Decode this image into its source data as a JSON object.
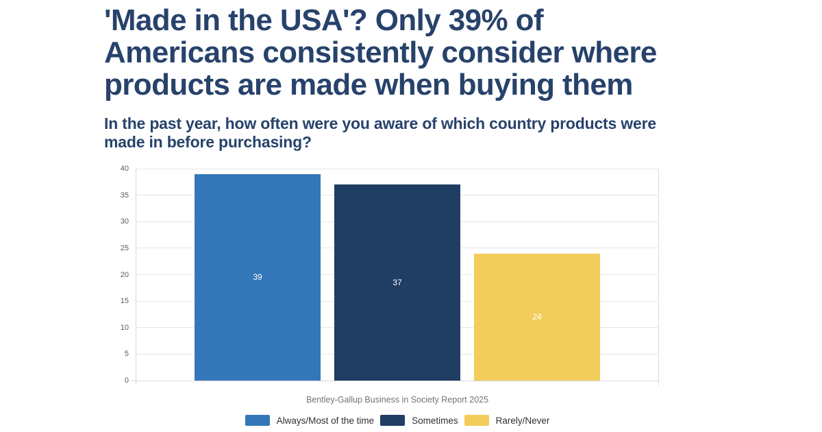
{
  "title_lines": [
    "'Made in the USA'? Only 39% of",
    "Americans consistently consider where",
    "products are made when buying them"
  ],
  "subtitle_lines": [
    "In the past year, how often were you aware of which country products were",
    "made in before purchasing?"
  ],
  "chart_data": {
    "type": "bar",
    "title": "'Made in the USA'? Only 39% of Americans consistently consider where products are made when buying them",
    "subtitle": "In the past year, how often were you aware of which country products were made in before purchasing?",
    "categories": [
      "Always/Most of the time",
      "Sometimes",
      "Rarely/Never"
    ],
    "values": [
      39,
      37,
      24
    ],
    "colors": [
      "#3377b8",
      "#203d63",
      "#f3cd5b"
    ],
    "value_label_color": "#ffffff",
    "xlabel": "",
    "ylabel": "",
    "ylim": [
      0,
      40
    ],
    "yticks": [
      0,
      5,
      10,
      15,
      20,
      25,
      30,
      35,
      40
    ],
    "grid": true,
    "legend_position": "bottom",
    "source": "Bentley-Gallup Business in Society Report 2025"
  },
  "legend": {
    "items": [
      {
        "label": "Always/Most of the time",
        "color": "#3377b8"
      },
      {
        "label": "Sometimes",
        "color": "#203d63"
      },
      {
        "label": "Rarely/Never",
        "color": "#f3cd5b"
      }
    ]
  },
  "source_label": "Bentley-Gallup Business in Society Report 2025",
  "colors": {
    "background": "#ffffff",
    "title_text": "#27426b",
    "axis_text": "#5a5a5a",
    "grid_line": "#e6e6e6",
    "axis_line": "#d8d8d8",
    "source_text": "#737373",
    "legend_text": "#303030"
  }
}
